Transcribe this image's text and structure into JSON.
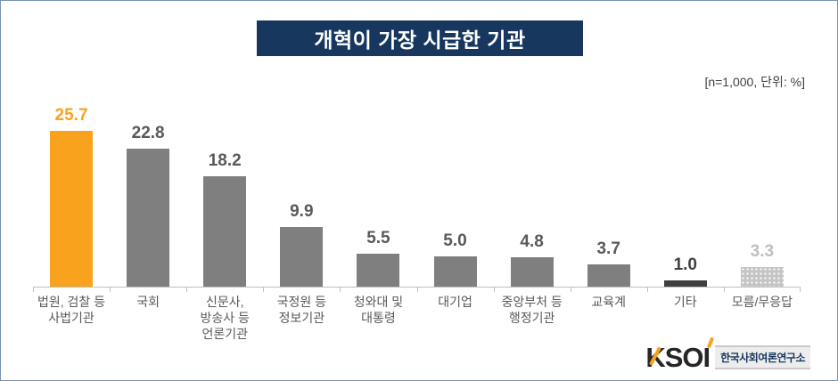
{
  "header": {
    "title": "개혁이 가장 시급한 기관",
    "annotation": "[n=1,000,  단위: %]"
  },
  "chart_data": {
    "type": "bar",
    "title": "개혁이 가장 시급한 기관",
    "note": "[n=1,000, 단위: %]",
    "categories": [
      "법원, 검찰 등\n사법기관",
      "국회",
      "신문사,\n방송사 등\n언론기관",
      "국정원 등\n정보기관",
      "청와대 및\n대통령",
      "대기업",
      "중앙부처 등\n행정기관",
      "교육계",
      "기타",
      "모름/무응답"
    ],
    "values": [
      25.7,
      22.8,
      18.2,
      9.9,
      5.5,
      5.0,
      4.8,
      3.7,
      1.0,
      3.3
    ],
    "bar_styles": [
      "highlight",
      "normal",
      "normal",
      "normal",
      "normal",
      "normal",
      "normal",
      "normal",
      "dark",
      "pattern"
    ],
    "xlabel": "",
    "ylabel": "",
    "ylim": [
      0,
      30
    ],
    "grid": false,
    "legend": "none",
    "value_labels_shown": true,
    "colors": {
      "highlight": "#f9a21d",
      "normal": "#7f7f7f",
      "dark": "#3f3f3f",
      "pattern_base": "#c4c4c4",
      "axis": "#bfbfbf",
      "title_bg": "#17375e",
      "title_text": "#ffffff",
      "value_text": "#595959"
    }
  },
  "logo": {
    "text": "KSOI",
    "subtext": "한국사회여론연구소"
  }
}
